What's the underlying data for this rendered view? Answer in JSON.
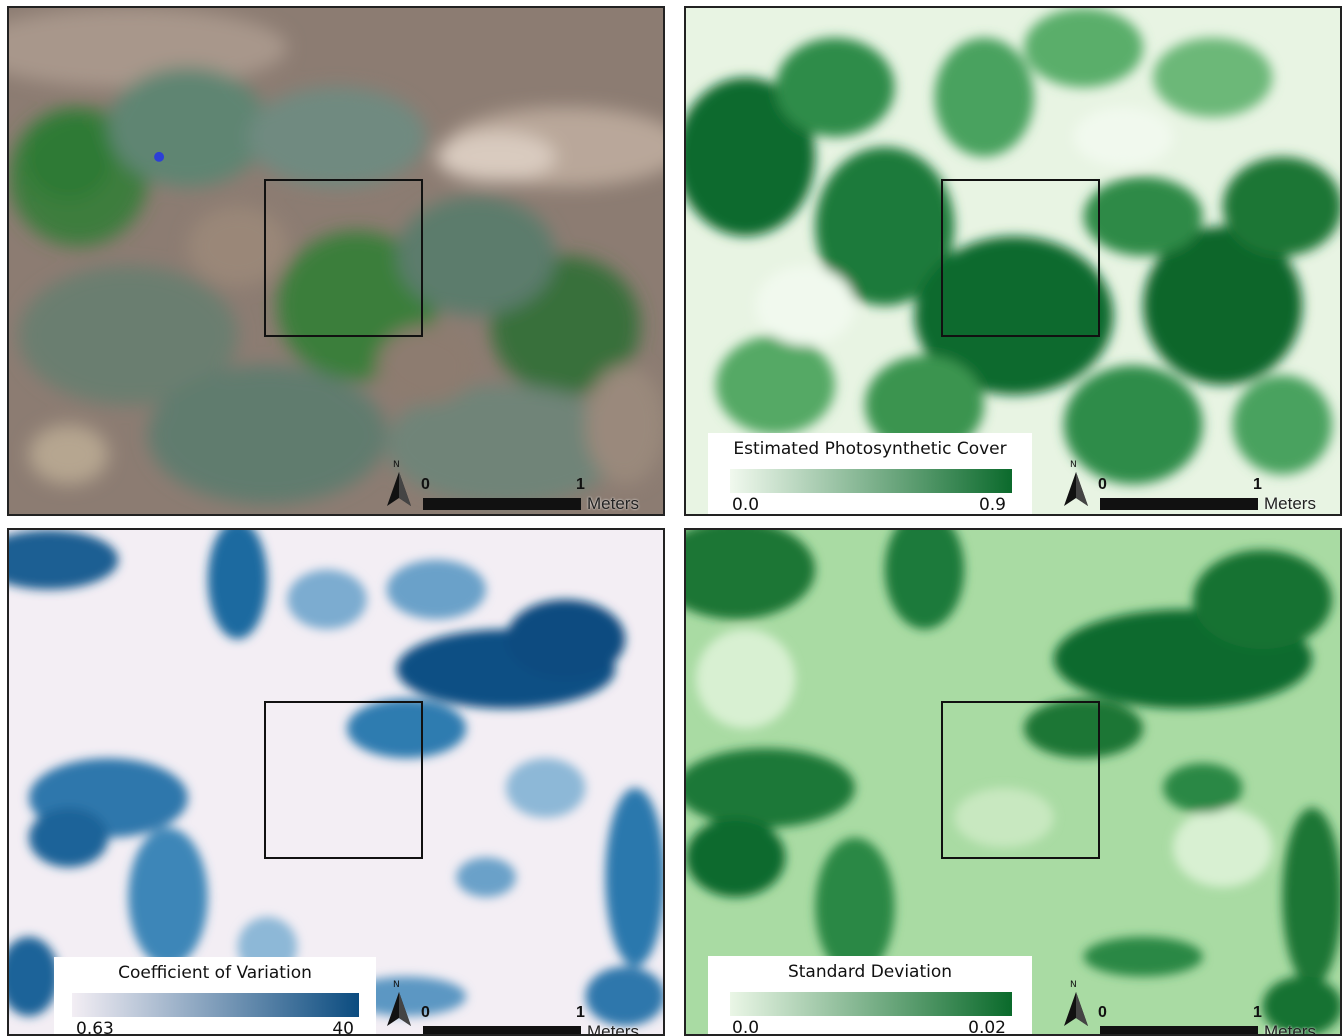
{
  "panels": {
    "rgb": {},
    "pv": {
      "legend": {
        "title": "Estimated Photosynthetic Cover",
        "min": "0.0",
        "max": "0.9",
        "colors": [
          "#f1f9ee",
          "#0b6a2c"
        ]
      }
    },
    "cv": {
      "legend": {
        "title": "Coefficient of Variation",
        "min": "0.63",
        "max": "40",
        "colors": [
          "#f3eef4",
          "#0b4c80"
        ]
      }
    },
    "sd": {
      "legend": {
        "title": "Standard Deviation",
        "min": "0.0",
        "max": "0.02",
        "colors": [
          "#eaf6e6",
          "#0a6a2b"
        ]
      }
    }
  },
  "scalebar": {
    "start": "0",
    "end": "1",
    "unit": "Meters"
  },
  "north_arrow": {
    "label": "N"
  }
}
